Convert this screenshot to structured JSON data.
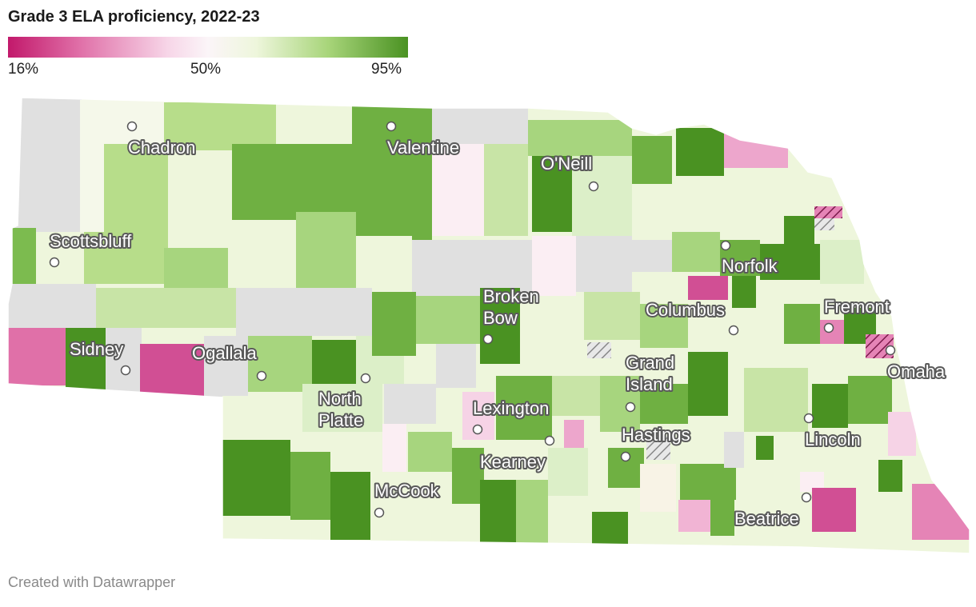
{
  "title": "Grade 3 ELA proficiency, 2022-23",
  "legend": {
    "min_label": "16%",
    "mid_label": "50%",
    "max_label": "95%",
    "colors": {
      "low": "#c2196b",
      "mid": "#fbf5f8",
      "high": "#4a9222",
      "no_data": "#e0e0e0"
    }
  },
  "cities": [
    {
      "name": "Chadron",
      "lines": [
        "Chadron"
      ]
    },
    {
      "name": "Valentine",
      "lines": [
        "Valentine"
      ]
    },
    {
      "name": "O'Neill",
      "lines": [
        "O'Neill"
      ]
    },
    {
      "name": "Scottsbluff",
      "lines": [
        "Scottsbluff"
      ]
    },
    {
      "name": "Norfolk",
      "lines": [
        "Norfolk"
      ]
    },
    {
      "name": "Broken Bow",
      "lines": [
        "Broken",
        "Bow"
      ]
    },
    {
      "name": "Columbus",
      "lines": [
        "Columbus"
      ]
    },
    {
      "name": "Fremont",
      "lines": [
        "Fremont"
      ]
    },
    {
      "name": "Sidney",
      "lines": [
        "Sidney"
      ]
    },
    {
      "name": "Ogallala",
      "lines": [
        "Ogallala"
      ]
    },
    {
      "name": "Grand Island",
      "lines": [
        "Grand",
        "Island"
      ]
    },
    {
      "name": "Omaha",
      "lines": [
        "Omaha"
      ]
    },
    {
      "name": "North Platte",
      "lines": [
        "North",
        "Platte"
      ]
    },
    {
      "name": "Lexington",
      "lines": [
        "Lexington"
      ]
    },
    {
      "name": "Lincoln",
      "lines": [
        "Lincoln"
      ]
    },
    {
      "name": "Hastings",
      "lines": [
        "Hastings"
      ]
    },
    {
      "name": "Kearney",
      "lines": [
        "Kearney"
      ]
    },
    {
      "name": "McCook",
      "lines": [
        "McCook"
      ]
    },
    {
      "name": "Beatrice",
      "lines": [
        "Beatrice"
      ]
    }
  ],
  "footer": "Created with Datawrapper"
}
